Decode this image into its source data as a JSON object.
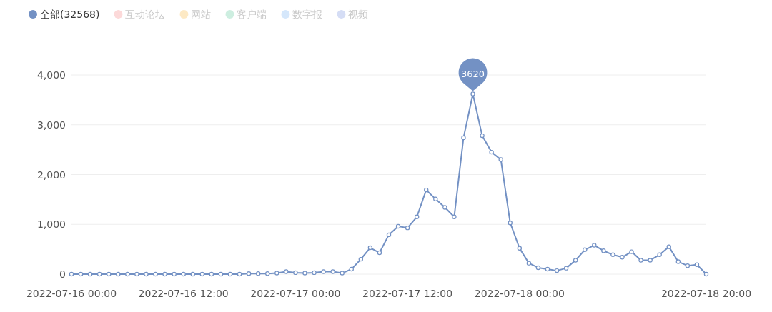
{
  "chart_data": {
    "type": "line",
    "x": [
      "2022-07-16T00:00",
      "2022-07-16T01:00",
      "2022-07-16T02:00",
      "2022-07-16T03:00",
      "2022-07-16T04:00",
      "2022-07-16T05:00",
      "2022-07-16T06:00",
      "2022-07-16T07:00",
      "2022-07-16T08:00",
      "2022-07-16T09:00",
      "2022-07-16T10:00",
      "2022-07-16T11:00",
      "2022-07-16T12:00",
      "2022-07-16T13:00",
      "2022-07-16T14:00",
      "2022-07-16T15:00",
      "2022-07-16T16:00",
      "2022-07-16T17:00",
      "2022-07-16T18:00",
      "2022-07-16T19:00",
      "2022-07-16T20:00",
      "2022-07-16T21:00",
      "2022-07-16T22:00",
      "2022-07-16T23:00",
      "2022-07-17T00:00",
      "2022-07-17T01:00",
      "2022-07-17T02:00",
      "2022-07-17T03:00",
      "2022-07-17T04:00",
      "2022-07-17T05:00",
      "2022-07-17T06:00",
      "2022-07-17T07:00",
      "2022-07-17T08:00",
      "2022-07-17T09:00",
      "2022-07-17T10:00",
      "2022-07-17T11:00",
      "2022-07-17T12:00",
      "2022-07-17T13:00",
      "2022-07-17T14:00",
      "2022-07-17T15:00",
      "2022-07-17T16:00",
      "2022-07-17T17:00",
      "2022-07-17T18:00",
      "2022-07-17T19:00",
      "2022-07-17T20:00",
      "2022-07-17T21:00",
      "2022-07-17T22:00",
      "2022-07-17T23:00",
      "2022-07-18T00:00",
      "2022-07-18T01:00",
      "2022-07-18T02:00",
      "2022-07-18T03:00",
      "2022-07-18T04:00",
      "2022-07-18T05:00",
      "2022-07-18T06:00",
      "2022-07-18T07:00",
      "2022-07-18T08:00",
      "2022-07-18T09:00",
      "2022-07-18T10:00",
      "2022-07-18T11:00",
      "2022-07-18T12:00",
      "2022-07-18T13:00",
      "2022-07-18T14:00",
      "2022-07-18T15:00",
      "2022-07-18T16:00",
      "2022-07-18T17:00",
      "2022-07-18T18:00",
      "2022-07-18T19:00",
      "2022-07-18T20:00"
    ],
    "series": [
      {
        "name": "全部(32568)",
        "color": "#7391c4",
        "values": [
          0,
          0,
          0,
          0,
          0,
          0,
          0,
          0,
          0,
          0,
          0,
          0,
          0,
          0,
          0,
          0,
          0,
          0,
          0,
          10,
          10,
          10,
          20,
          50,
          30,
          20,
          30,
          50,
          50,
          20,
          100,
          300,
          530,
          430,
          790,
          960,
          930,
          1150,
          1690,
          1510,
          1340,
          1150,
          2740,
          3620,
          2780,
          2450,
          2300,
          1030,
          520,
          220,
          130,
          100,
          70,
          120,
          280,
          490,
          580,
          470,
          390,
          340,
          450,
          280,
          280,
          390,
          550,
          250,
          170,
          190,
          0
        ]
      },
      {
        "name": "互动论坛",
        "color": "#fcd9d9",
        "values": [
          null,
          null,
          null,
          null,
          null,
          null,
          null,
          null,
          null,
          null,
          null,
          null,
          null,
          null,
          null,
          null,
          null,
          null,
          null,
          null,
          null,
          null,
          null,
          null,
          null,
          null,
          null,
          null,
          null,
          null,
          null,
          null,
          null,
          null,
          null,
          null,
          null,
          null,
          null,
          null,
          null,
          null,
          null,
          null,
          null,
          null,
          null,
          null,
          null,
          null,
          null,
          null,
          null,
          null,
          null,
          null,
          null,
          null,
          null,
          null,
          null,
          null,
          null,
          null,
          null,
          null,
          null,
          null,
          null
        ]
      },
      {
        "name": "网站",
        "color": "#fde9c4",
        "values": [
          null,
          null,
          null,
          null,
          null,
          null,
          null,
          null,
          null,
          null,
          null,
          null,
          null,
          null,
          null,
          null,
          null,
          null,
          null,
          null,
          null,
          null,
          null,
          null,
          null,
          null,
          null,
          null,
          null,
          null,
          null,
          null,
          null,
          null,
          null,
          null,
          null,
          null,
          null,
          null,
          null,
          null,
          null,
          null,
          null,
          null,
          null,
          null,
          null,
          null,
          null,
          null,
          null,
          null,
          null,
          null,
          null,
          null,
          null,
          null,
          null,
          null,
          null,
          null,
          null,
          null,
          null,
          null,
          null
        ]
      },
      {
        "name": "客户端",
        "color": "#cdeee0",
        "values": [
          null,
          null,
          null,
          null,
          null,
          null,
          null,
          null,
          null,
          null,
          null,
          null,
          null,
          null,
          null,
          null,
          null,
          null,
          null,
          null,
          null,
          null,
          null,
          null,
          null,
          null,
          null,
          null,
          null,
          null,
          null,
          null,
          null,
          null,
          null,
          null,
          null,
          null,
          null,
          null,
          null,
          null,
          null,
          null,
          null,
          null,
          null,
          null,
          null,
          null,
          null,
          null,
          null,
          null,
          null,
          null,
          null,
          null,
          null,
          null,
          null,
          null,
          null,
          null,
          null,
          null,
          null,
          null,
          null
        ]
      },
      {
        "name": "数字报",
        "color": "#d5e7fb",
        "values": [
          null,
          null,
          null,
          null,
          null,
          null,
          null,
          null,
          null,
          null,
          null,
          null,
          null,
          null,
          null,
          null,
          null,
          null,
          null,
          null,
          null,
          null,
          null,
          null,
          null,
          null,
          null,
          null,
          null,
          null,
          null,
          null,
          null,
          null,
          null,
          null,
          null,
          null,
          null,
          null,
          null,
          null,
          null,
          null,
          null,
          null,
          null,
          null,
          null,
          null,
          null,
          null,
          null,
          null,
          null,
          null,
          null,
          null,
          null,
          null,
          null,
          null,
          null,
          null,
          null,
          null,
          null,
          null,
          null
        ]
      },
      {
        "name": "视频",
        "color": "#d5ddf5",
        "values": [
          null,
          null,
          null,
          null,
          null,
          null,
          null,
          null,
          null,
          null,
          null,
          null,
          null,
          null,
          null,
          null,
          null,
          null,
          null,
          null,
          null,
          null,
          null,
          null,
          null,
          null,
          null,
          null,
          null,
          null,
          null,
          null,
          null,
          null,
          null,
          null,
          null,
          null,
          null,
          null,
          null,
          null,
          null,
          null,
          null,
          null,
          null,
          null,
          null,
          null,
          null,
          null,
          null,
          null,
          null,
          null,
          null,
          null,
          null,
          null,
          null,
          null,
          null,
          null,
          null,
          null,
          null,
          null,
          null
        ]
      }
    ],
    "xlim": [
      "2022-07-16T00:00",
      "2022-07-18T20:00"
    ],
    "xticks": [
      {
        "value": "2022-07-16T00:00",
        "label": "2022-07-16 00:00"
      },
      {
        "value": "2022-07-16T12:00",
        "label": "2022-07-16 12:00"
      },
      {
        "value": "2022-07-17T00:00",
        "label": "2022-07-17 00:00"
      },
      {
        "value": "2022-07-17T12:00",
        "label": "2022-07-17 12:00"
      },
      {
        "value": "2022-07-18T00:00",
        "label": "2022-07-18 00:00"
      },
      {
        "value": "2022-07-18T20:00",
        "label": "2022-07-18 20:00"
      }
    ],
    "ylim": [
      0,
      4000
    ],
    "yticks": [
      0,
      {
        "value": 1000,
        "label": "1,000"
      },
      {
        "value": 2000,
        "label": "2,000"
      },
      {
        "value": 3000,
        "label": "3,000"
      },
      {
        "value": 4000,
        "label": "4,000"
      }
    ],
    "annotations": [
      {
        "text": "3620",
        "x": "2022-07-17T19:00",
        "y": 3620
      }
    ],
    "grid": "y",
    "legend": "top left",
    "marker": "circle",
    "line_style": "solid"
  }
}
